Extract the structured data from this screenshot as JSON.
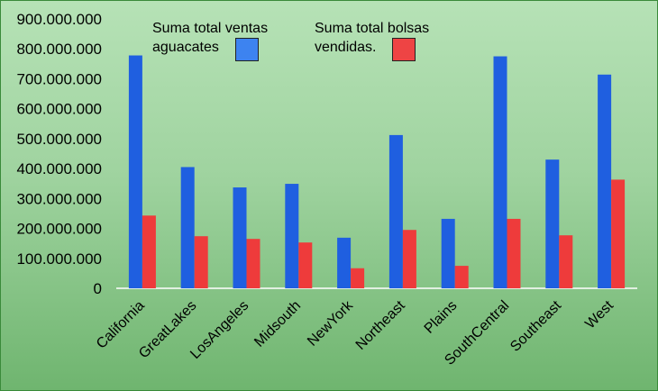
{
  "chart_data": {
    "type": "bar",
    "categories": [
      "California",
      "GreatLakes",
      "LosAngeles",
      "Midsouth",
      "NewYork",
      "Northeast",
      "Plains",
      "SouthCentral",
      "Southeast",
      "West"
    ],
    "series": [
      {
        "name_lines": [
          "Suma total ventas",
          "aguacates"
        ],
        "color": "#1f5fe0",
        "swatch_color": "#3d83f0",
        "values": [
          778000000,
          405000000,
          337000000,
          349000000,
          169000000,
          512000000,
          232000000,
          775000000,
          430000000,
          714000000
        ]
      },
      {
        "name_lines": [
          "Suma total  bolsas",
          "vendidas."
        ],
        "color": "#ee3b3b",
        "swatch_color": "#ee4444",
        "values": [
          243000000,
          174000000,
          165000000,
          153000000,
          67000000,
          195000000,
          75000000,
          232000000,
          177000000,
          363000000
        ]
      }
    ],
    "ylim": [
      0,
      900000000
    ],
    "yticks": [
      "0",
      "100.000.000",
      "200.000.000",
      "300.000.000",
      "400.000.000",
      "500.000.000",
      "600.000.000",
      "700.000.000",
      "800.000.000",
      "900.000.000"
    ],
    "grid": false,
    "legend_position": "top"
  }
}
